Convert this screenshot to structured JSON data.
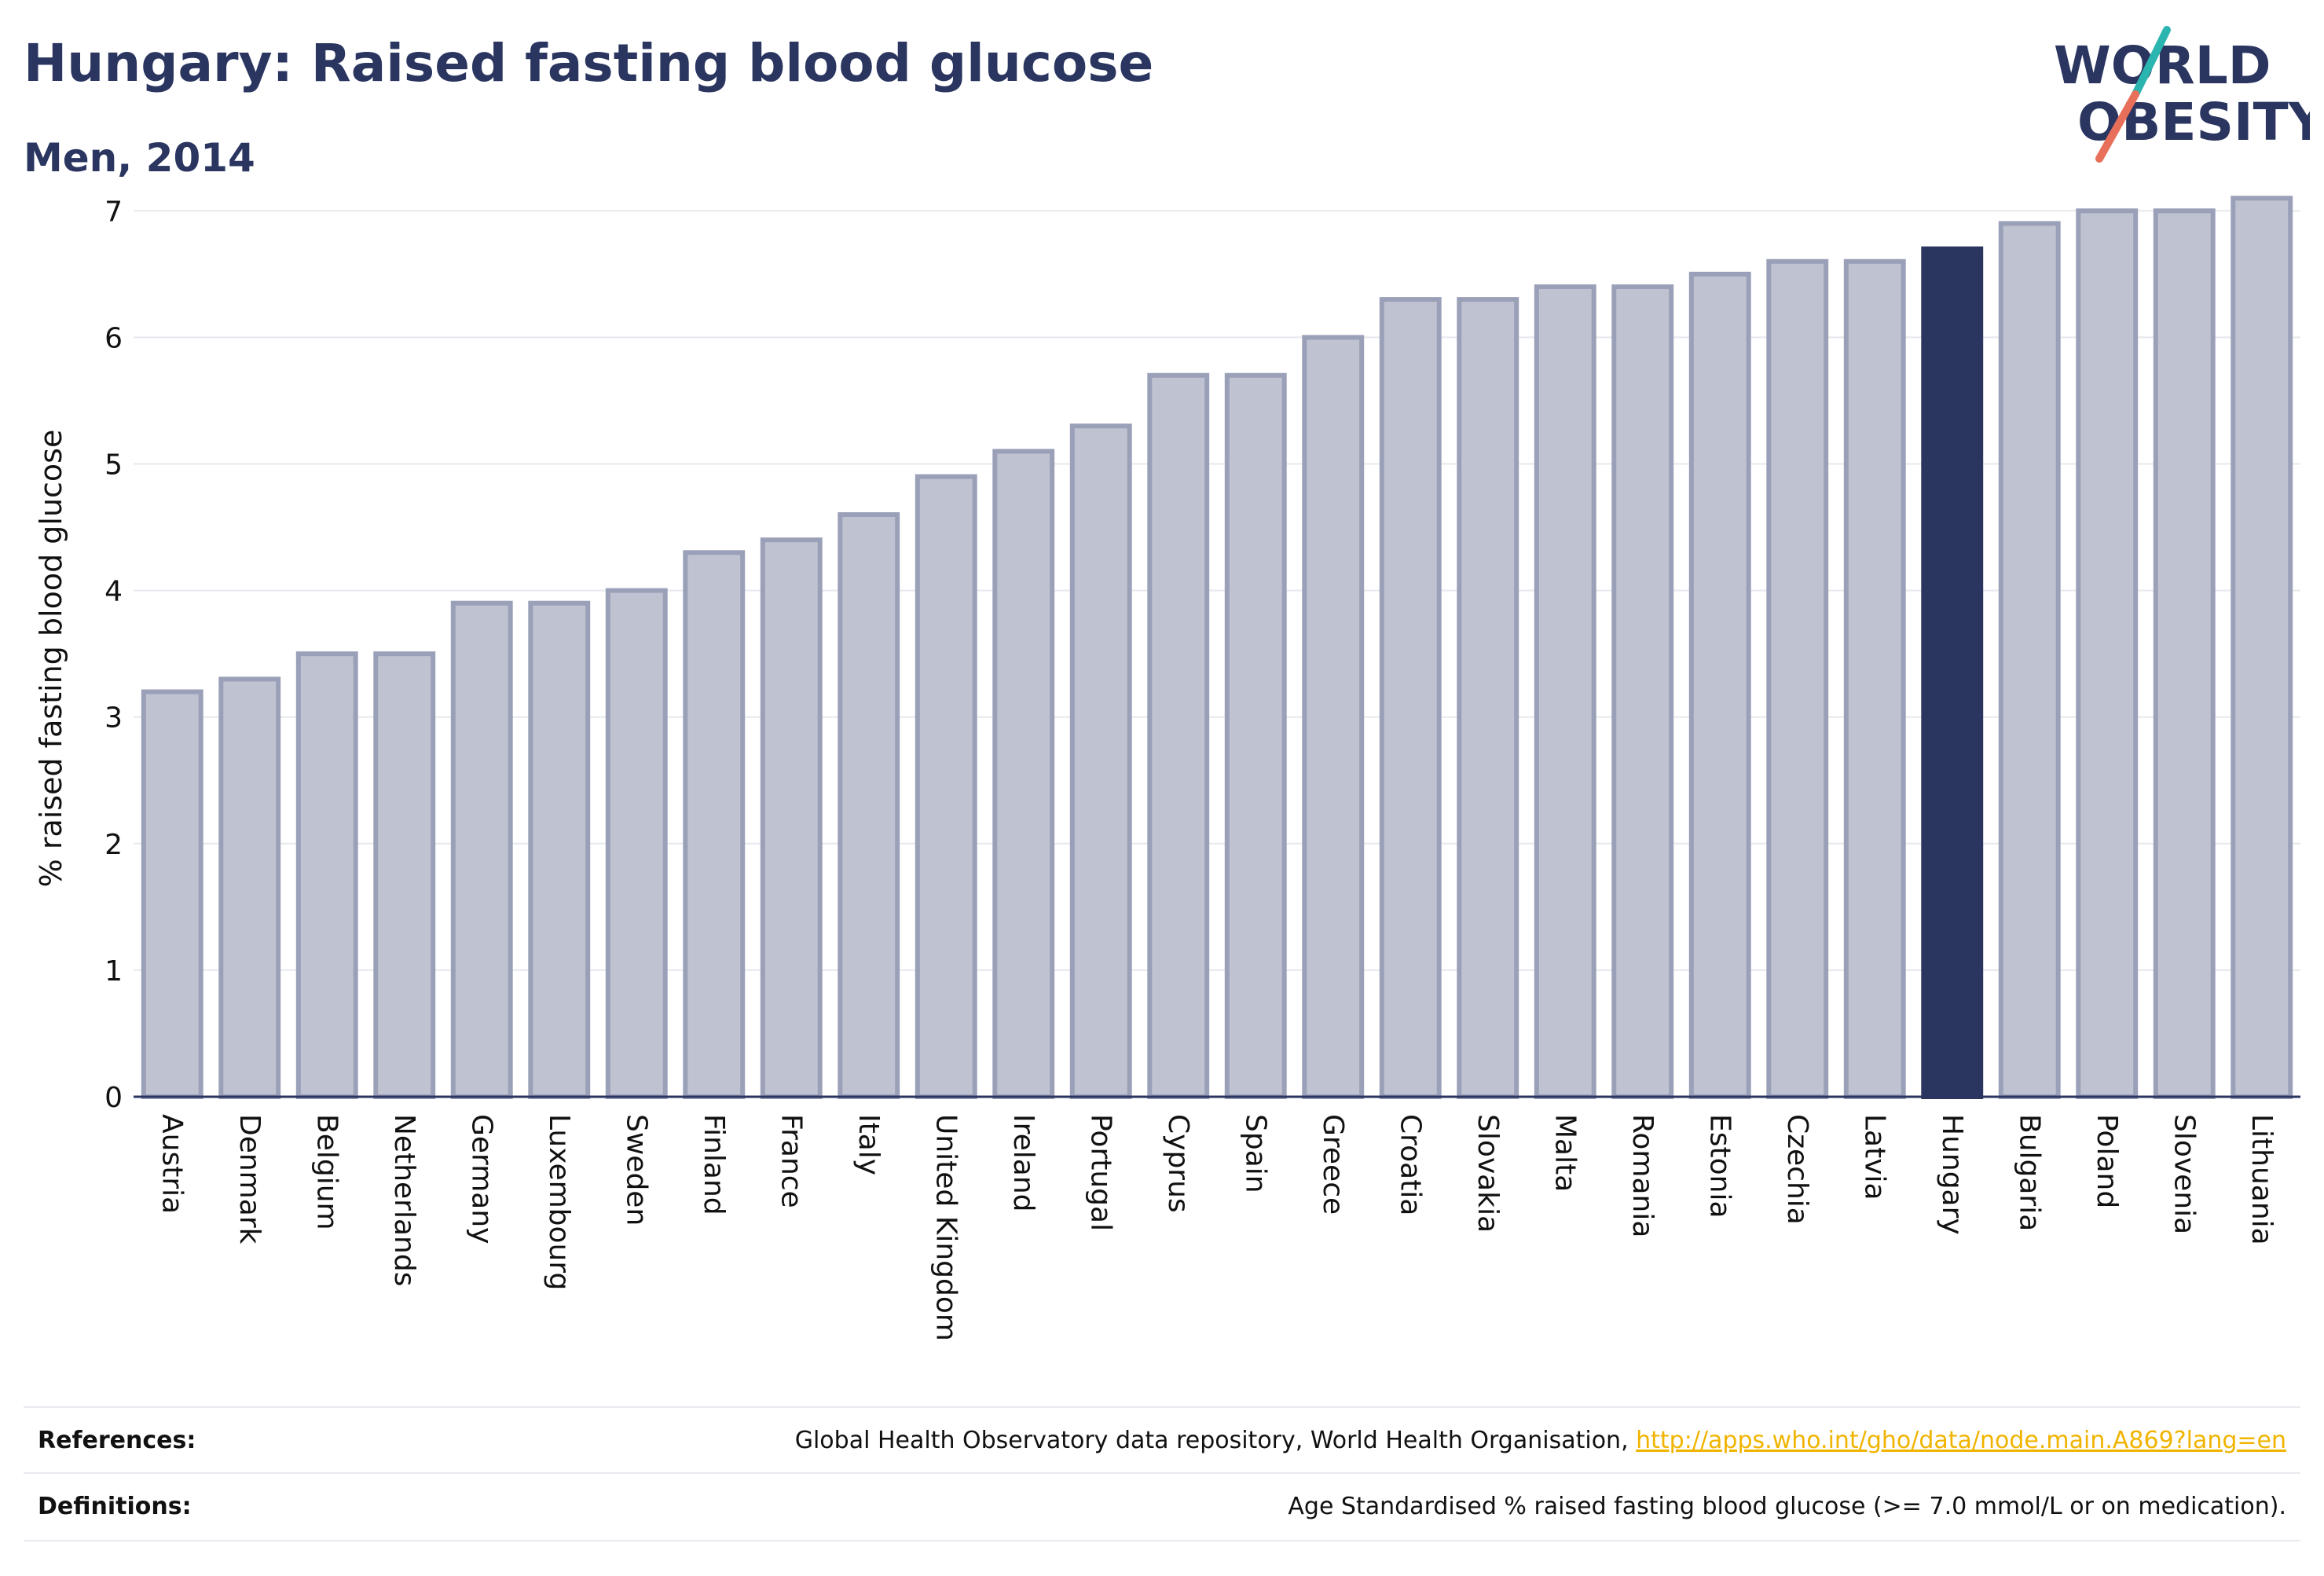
{
  "header": {
    "title": "Hungary: Raised fasting blood glucose",
    "subtitle": "Men, 2014"
  },
  "logo": {
    "line1": "WORLD",
    "line2": "OBESITY"
  },
  "colors": {
    "highlight": "#2a3560",
    "bar_fill": "#bfc2d0",
    "bar_stroke": "#9aa0b8",
    "title": "#2a3560",
    "link": "#f0b400",
    "logo_teal": "#2bb5b0",
    "logo_red": "#e8705a"
  },
  "chart_data": {
    "type": "bar",
    "title": "Hungary: Raised fasting blood glucose",
    "subtitle": "Men, 2014",
    "xlabel": "",
    "ylabel": "% raised fasting blood glucose",
    "ylim": [
      0,
      7.3
    ],
    "yticks": [
      0,
      1,
      2,
      3,
      4,
      5,
      6,
      7
    ],
    "grid": true,
    "highlight": "Hungary",
    "categories": [
      "Austria",
      "Denmark",
      "Belgium",
      "Netherlands",
      "Germany",
      "Luxembourg",
      "Sweden",
      "Finland",
      "France",
      "Italy",
      "United Kingdom",
      "Ireland",
      "Portugal",
      "Cyprus",
      "Spain",
      "Greece",
      "Croatia",
      "Slovakia",
      "Malta",
      "Romania",
      "Estonia",
      "Czechia",
      "Latvia",
      "Hungary",
      "Bulgaria",
      "Poland",
      "Slovenia",
      "Lithuania"
    ],
    "values": [
      3.2,
      3.3,
      3.5,
      3.5,
      3.9,
      3.9,
      4.0,
      4.3,
      4.4,
      4.6,
      4.9,
      5.1,
      5.3,
      5.7,
      5.7,
      6.0,
      6.3,
      6.3,
      6.4,
      6.4,
      6.5,
      6.6,
      6.6,
      6.7,
      6.9,
      7.0,
      7.0,
      7.1
    ]
  },
  "footer": {
    "references_label": "References:",
    "references_text": "Global Health Observatory data repository, World Health Organisation, ",
    "references_link": "http://apps.who.int/gho/data/node.main.A869?lang=en",
    "definitions_label": "Definitions:",
    "definitions_text": "Age Standardised % raised fasting blood glucose (>= 7.0 mmol/L or on medication)."
  }
}
